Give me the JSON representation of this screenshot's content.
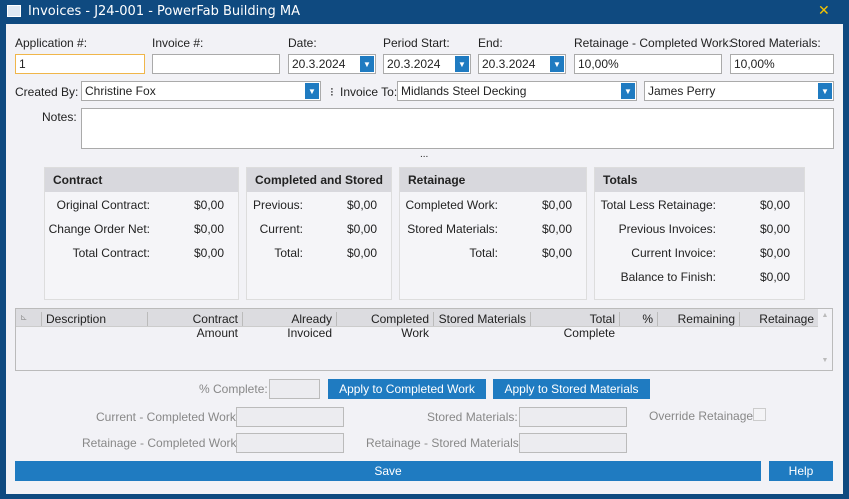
{
  "window": {
    "title": "Invoices - J24-001 - PowerFab Building MA",
    "close": "✕"
  },
  "form": {
    "application_label": "Application #:",
    "application_value": "1",
    "invoice_label": "Invoice #:",
    "invoice_value": "",
    "date_label": "Date:",
    "date_value": "20.3.2024",
    "period_start_label": "Period Start:",
    "period_start_value": "20.3.2024",
    "end_label": "End:",
    "end_value": "20.3.2024",
    "retainage_cw_label": "Retainage - Completed Work:",
    "retainage_cw_value": "10,00%",
    "stored_label": "Stored Materials:",
    "stored_value": "10,00%",
    "created_by_label": "Created By:",
    "created_by_value": "Christine Fox",
    "invoice_to_label": "Invoice To:",
    "invoice_to_value": "Midlands Steel Decking",
    "contact_value": "James Perry",
    "notes_label": "Notes:",
    "notes_value": "",
    "splitter": "..."
  },
  "panels": {
    "contract": {
      "title": "Contract",
      "rows": [
        {
          "label": "Original Contract:",
          "value": "$0,00"
        },
        {
          "label": "Change Order Net:",
          "value": "$0,00"
        },
        {
          "label": "Total Contract:",
          "value": "$0,00"
        }
      ]
    },
    "completed": {
      "title": "Completed and Stored",
      "rows": [
        {
          "label": "Previous:",
          "value": "$0,00"
        },
        {
          "label": "Current:",
          "value": "$0,00"
        },
        {
          "label": "Total:",
          "value": "$0,00"
        }
      ]
    },
    "retainage": {
      "title": "Retainage",
      "rows": [
        {
          "label": "Completed Work:",
          "value": "$0,00"
        },
        {
          "label": "Stored Materials:",
          "value": "$0,00"
        },
        {
          "label": "Total:",
          "value": "$0,00"
        }
      ]
    },
    "totals": {
      "title": "Totals",
      "rows": [
        {
          "label": "Total Less Retainage:",
          "value": "$0,00"
        },
        {
          "label": "Previous Invoices:",
          "value": "$0,00"
        },
        {
          "label": "Current Invoice:",
          "value": "$0,00"
        },
        {
          "label": "Balance to Finish:",
          "value": "$0,00"
        }
      ]
    }
  },
  "grid": {
    "columns": [
      "Description",
      "Contract Amount",
      "Already Invoiced",
      "Completed Work",
      "Stored Materials",
      "Total Complete",
      "%",
      "Remaining",
      "Retainage"
    ]
  },
  "bottom": {
    "pct_complete_label": "% Complete:",
    "apply_cw": "Apply to Completed Work",
    "apply_sm": "Apply to Stored Materials",
    "current_cw_label": "Current - Completed Work:",
    "stored_materials_label": "Stored Materials:",
    "override_label": "Override Retainage:",
    "ret_cw_label": "Retainage - Completed Work:",
    "ret_sm_label": "Retainage - Stored Materials:",
    "save": "Save",
    "help": "Help"
  }
}
